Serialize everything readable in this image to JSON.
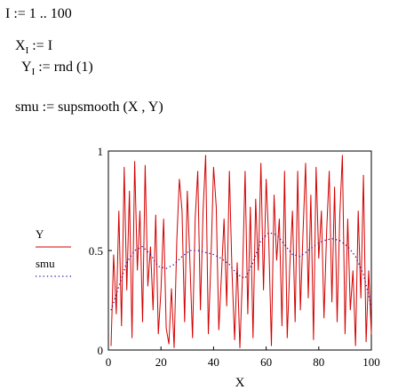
{
  "equations": {
    "eq1": {
      "lhs": "I",
      "op": ":=",
      "rhs": "1 .. 100"
    },
    "eq2": {
      "lhs": "X",
      "sub": "I",
      "op": ":=",
      "rhs": "I"
    },
    "eq3": {
      "lhs": "Y",
      "sub": "I",
      "op": ":=",
      "rhs": "rnd (1)"
    },
    "eq4": {
      "lhs": "smu",
      "op": ":=",
      "rhs": "supsmooth  (X , Y)"
    }
  },
  "legend": {
    "series1": "Y",
    "series2": "smu"
  },
  "colors": {
    "series1": "#d40000",
    "series2": "#1a1aa6"
  },
  "chart_data": {
    "type": "line",
    "xlabel": "X",
    "xlim": [
      0,
      100
    ],
    "ylim": [
      0,
      1
    ],
    "xticks": [
      "0",
      "20",
      "40",
      "60",
      "80",
      "100"
    ],
    "yticks": [
      "0",
      "0.5",
      "1"
    ],
    "series": [
      {
        "name": "Y",
        "style": "solid",
        "x": [
          1,
          2,
          3,
          4,
          5,
          6,
          7,
          8,
          9,
          10,
          11,
          12,
          13,
          14,
          15,
          16,
          17,
          18,
          19,
          20,
          21,
          22,
          23,
          24,
          25,
          26,
          27,
          28,
          29,
          30,
          31,
          32,
          33,
          34,
          35,
          36,
          37,
          38,
          39,
          40,
          41,
          42,
          43,
          44,
          45,
          46,
          47,
          48,
          49,
          50,
          51,
          52,
          53,
          54,
          55,
          56,
          57,
          58,
          59,
          60,
          61,
          62,
          63,
          64,
          65,
          66,
          67,
          68,
          69,
          70,
          71,
          72,
          73,
          74,
          75,
          76,
          77,
          78,
          79,
          80,
          81,
          82,
          83,
          84,
          85,
          86,
          87,
          88,
          89,
          90,
          91,
          92,
          93,
          94,
          95,
          96,
          97,
          98,
          99,
          100
        ],
        "values": [
          0.02,
          0.48,
          0.18,
          0.7,
          0.12,
          0.92,
          0.3,
          0.8,
          0.06,
          0.95,
          0.4,
          0.7,
          0.14,
          0.93,
          0.32,
          0.52,
          0.2,
          0.68,
          0.08,
          0.3,
          0.66,
          0.11,
          0.03,
          0.31,
          0.01,
          0.55,
          0.86,
          0.7,
          0.14,
          0.8,
          0.44,
          0.06,
          0.66,
          0.9,
          0.2,
          0.7,
          0.98,
          0.08,
          0.44,
          0.92,
          0.72,
          0.1,
          0.38,
          0.66,
          0.22,
          0.9,
          0.4,
          0.05,
          0.44,
          0.01,
          0.38,
          0.9,
          0.18,
          0.72,
          0.06,
          0.76,
          0.4,
          0.94,
          0.3,
          0.86,
          0.54,
          0.02,
          0.78,
          0.45,
          0.66,
          0.12,
          0.9,
          0.06,
          0.42,
          0.7,
          0.14,
          0.9,
          0.2,
          0.58,
          0.94,
          0.26,
          0.78,
          0.05,
          0.92,
          0.46,
          0.7,
          0.16,
          0.6,
          0.9,
          0.24,
          0.82,
          0.14,
          0.68,
          0.98,
          0.08,
          0.66,
          0.2,
          0.4,
          0.02,
          0.7,
          0.26,
          0.88,
          0.04,
          0.4,
          0.08
        ]
      },
      {
        "name": "smu",
        "style": "dotted",
        "x": [
          1,
          4,
          7,
          10,
          13,
          16,
          19,
          22,
          25,
          28,
          31,
          34,
          37,
          40,
          43,
          46,
          49,
          52,
          55,
          58,
          61,
          64,
          67,
          70,
          73,
          76,
          79,
          82,
          85,
          88,
          91,
          94,
          97,
          100
        ],
        "values": [
          0.2,
          0.32,
          0.44,
          0.5,
          0.52,
          0.48,
          0.42,
          0.41,
          0.43,
          0.47,
          0.5,
          0.5,
          0.49,
          0.48,
          0.46,
          0.43,
          0.38,
          0.36,
          0.44,
          0.55,
          0.59,
          0.58,
          0.53,
          0.48,
          0.47,
          0.5,
          0.53,
          0.55,
          0.56,
          0.55,
          0.52,
          0.47,
          0.38,
          0.22
        ]
      }
    ]
  }
}
